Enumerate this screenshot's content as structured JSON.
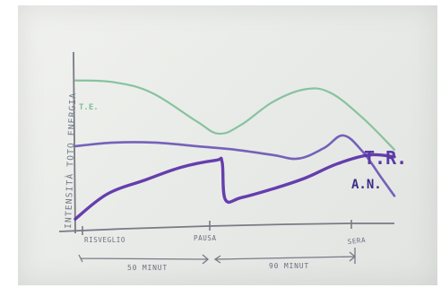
{
  "chart_data": {
    "type": "line",
    "ylabel": "INTENSITÀ TOTO ENERGIA",
    "x_ticks": [
      "RISVEGLIO",
      "PAUSA",
      "SERA"
    ],
    "x_spans": [
      "50 MINUT",
      "90 MINUT"
    ],
    "colors": {
      "green": "#7fbf97",
      "purple_light": "#6b55b4",
      "purple_dark": "#5a2fa8",
      "axis": "#7a7a86"
    },
    "series": [
      {
        "name": "T.E.",
        "color_key": "green",
        "points": [
          [
            0.0,
            8.1
          ],
          [
            0.12,
            8.0
          ],
          [
            0.24,
            7.4
          ],
          [
            0.38,
            5.8
          ],
          [
            0.45,
            5.1
          ],
          [
            0.52,
            5.6
          ],
          [
            0.62,
            6.9
          ],
          [
            0.72,
            7.6
          ],
          [
            0.8,
            7.4
          ],
          [
            0.9,
            6.0
          ],
          [
            1.0,
            4.2
          ]
        ]
      },
      {
        "name": "T.R.",
        "color_key": "purple_light",
        "points": [
          [
            0.0,
            4.4
          ],
          [
            0.12,
            4.6
          ],
          [
            0.25,
            4.6
          ],
          [
            0.38,
            4.4
          ],
          [
            0.5,
            4.2
          ],
          [
            0.62,
            3.9
          ],
          [
            0.7,
            3.7
          ],
          [
            0.78,
            4.3
          ],
          [
            0.84,
            5.0
          ],
          [
            0.9,
            4.1
          ],
          [
            0.96,
            2.6
          ],
          [
            1.0,
            1.6
          ]
        ]
      },
      {
        "name": "A.N.",
        "color_key": "purple_dark",
        "points": [
          [
            0.0,
            0.3
          ],
          [
            0.1,
            1.7
          ],
          [
            0.22,
            2.5
          ],
          [
            0.33,
            3.2
          ],
          [
            0.44,
            3.6
          ],
          [
            0.46,
            3.5
          ],
          [
            0.47,
            1.4
          ],
          [
            0.52,
            1.5
          ],
          [
            0.62,
            2.0
          ],
          [
            0.72,
            2.6
          ],
          [
            0.82,
            3.4
          ],
          [
            0.92,
            3.9
          ],
          [
            1.0,
            3.8
          ]
        ]
      }
    ],
    "xlim": [
      0,
      1
    ],
    "ylim": [
      0,
      10
    ]
  }
}
